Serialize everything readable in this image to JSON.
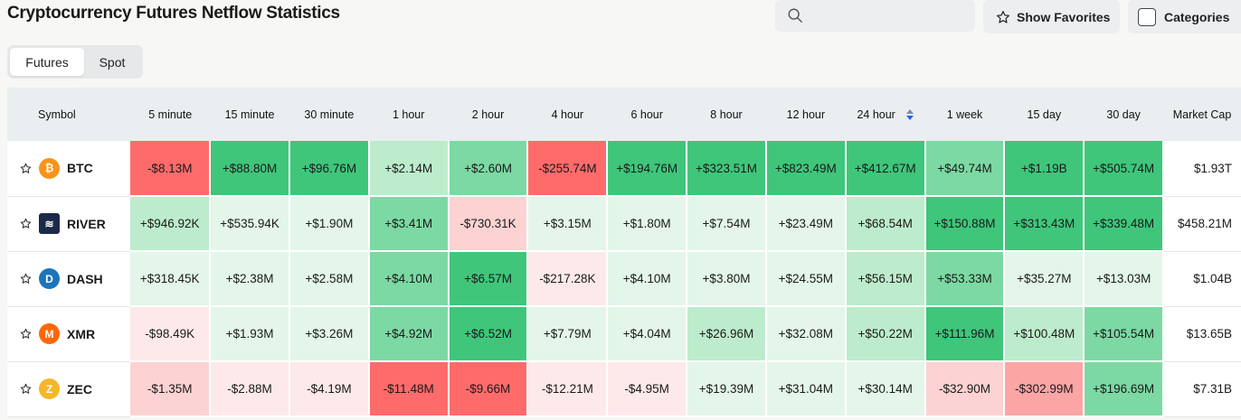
{
  "title": "Cryptocurrency Futures Netflow Statistics",
  "search": {
    "placeholder": "",
    "icon": "search-icon"
  },
  "buttons": {
    "show_favorites": "Show Favorites",
    "categories": "Categories"
  },
  "tabs": [
    {
      "label": "Futures",
      "active": true
    },
    {
      "label": "Spot",
      "active": false
    }
  ],
  "columns": [
    "Symbol",
    "5 minute",
    "15 minute",
    "30 minute",
    "1 hour",
    "2 hour",
    "4 hour",
    "6 hour",
    "8 hour",
    "12 hour",
    "24 hour",
    "1 week",
    "15 day",
    "30 day",
    "Market Cap"
  ],
  "sorted_column": "24 hour",
  "colors": {
    "strong_green": "#3fc67b",
    "mid_green": "#7cd9a3",
    "light_green": "#bdeccc",
    "faint_green": "#e3f6e9",
    "strong_red": "#ff6b6b",
    "mid_red": "#fba5a5",
    "light_red": "#fcd2d2",
    "faint_red": "#fde9e9"
  },
  "rows": [
    {
      "symbol": "BTC",
      "icon": "bitcoin-icon",
      "icon_color": "#f7931a",
      "icon_glyph": "₿",
      "market_cap": "$1.93T",
      "cells": [
        {
          "v": "-$8.13M",
          "c": "strong_red"
        },
        {
          "v": "+$88.80M",
          "c": "strong_green"
        },
        {
          "v": "+$96.76M",
          "c": "strong_green"
        },
        {
          "v": "+$2.14M",
          "c": "light_green"
        },
        {
          "v": "+$2.60M",
          "c": "mid_green"
        },
        {
          "v": "-$255.74M",
          "c": "strong_red"
        },
        {
          "v": "+$194.76M",
          "c": "strong_green"
        },
        {
          "v": "+$323.51M",
          "c": "strong_green"
        },
        {
          "v": "+$823.49M",
          "c": "strong_green"
        },
        {
          "v": "+$412.67M",
          "c": "strong_green"
        },
        {
          "v": "+$49.74M",
          "c": "mid_green"
        },
        {
          "v": "+$1.19B",
          "c": "strong_green"
        },
        {
          "v": "+$505.74M",
          "c": "strong_green"
        }
      ]
    },
    {
      "symbol": "RIVER",
      "icon": "river-icon",
      "icon_color": "#1b2a4a",
      "icon_glyph": "≋",
      "market_cap": "$458.21M",
      "cells": [
        {
          "v": "+$946.92K",
          "c": "light_green"
        },
        {
          "v": "+$535.94K",
          "c": "faint_green"
        },
        {
          "v": "+$1.90M",
          "c": "faint_green"
        },
        {
          "v": "+$3.41M",
          "c": "mid_green"
        },
        {
          "v": "-$730.31K",
          "c": "light_red"
        },
        {
          "v": "+$3.15M",
          "c": "faint_green"
        },
        {
          "v": "+$1.80M",
          "c": "faint_green"
        },
        {
          "v": "+$7.54M",
          "c": "faint_green"
        },
        {
          "v": "+$23.49M",
          "c": "faint_green"
        },
        {
          "v": "+$68.54M",
          "c": "light_green"
        },
        {
          "v": "+$150.88M",
          "c": "strong_green"
        },
        {
          "v": "+$313.43M",
          "c": "strong_green"
        },
        {
          "v": "+$339.48M",
          "c": "strong_green"
        }
      ]
    },
    {
      "symbol": "DASH",
      "icon": "dash-icon",
      "icon_color": "#1c75bc",
      "icon_glyph": "D",
      "market_cap": "$1.04B",
      "cells": [
        {
          "v": "+$318.45K",
          "c": "faint_green"
        },
        {
          "v": "+$2.38M",
          "c": "faint_green"
        },
        {
          "v": "+$2.58M",
          "c": "faint_green"
        },
        {
          "v": "+$4.10M",
          "c": "mid_green"
        },
        {
          "v": "+$6.57M",
          "c": "strong_green"
        },
        {
          "v": "-$217.28K",
          "c": "faint_red"
        },
        {
          "v": "+$4.10M",
          "c": "faint_green"
        },
        {
          "v": "+$3.80M",
          "c": "faint_green"
        },
        {
          "v": "+$24.55M",
          "c": "faint_green"
        },
        {
          "v": "+$56.15M",
          "c": "light_green"
        },
        {
          "v": "+$53.33M",
          "c": "mid_green"
        },
        {
          "v": "+$35.27M",
          "c": "faint_green"
        },
        {
          "v": "+$13.03M",
          "c": "faint_green"
        }
      ]
    },
    {
      "symbol": "XMR",
      "icon": "monero-icon",
      "icon_color": "#ff6600",
      "icon_glyph": "M",
      "market_cap": "$13.65B",
      "cells": [
        {
          "v": "-$98.49K",
          "c": "faint_red"
        },
        {
          "v": "+$1.93M",
          "c": "faint_green"
        },
        {
          "v": "+$3.26M",
          "c": "faint_green"
        },
        {
          "v": "+$4.92M",
          "c": "mid_green"
        },
        {
          "v": "+$6.52M",
          "c": "strong_green"
        },
        {
          "v": "+$7.79M",
          "c": "faint_green"
        },
        {
          "v": "+$4.04M",
          "c": "faint_green"
        },
        {
          "v": "+$26.96M",
          "c": "light_green"
        },
        {
          "v": "+$32.08M",
          "c": "faint_green"
        },
        {
          "v": "+$50.22M",
          "c": "light_green"
        },
        {
          "v": "+$111.96M",
          "c": "strong_green"
        },
        {
          "v": "+$100.48M",
          "c": "light_green"
        },
        {
          "v": "+$105.54M",
          "c": "mid_green"
        }
      ]
    },
    {
      "symbol": "ZEC",
      "icon": "zcash-icon",
      "icon_color": "#f4b728",
      "icon_glyph": "Z",
      "market_cap": "$7.31B",
      "cells": [
        {
          "v": "-$1.35M",
          "c": "light_red"
        },
        {
          "v": "-$2.88M",
          "c": "faint_red"
        },
        {
          "v": "-$4.19M",
          "c": "faint_red"
        },
        {
          "v": "-$11.48M",
          "c": "strong_red"
        },
        {
          "v": "-$9.66M",
          "c": "strong_red"
        },
        {
          "v": "-$12.21M",
          "c": "faint_red"
        },
        {
          "v": "-$4.95M",
          "c": "faint_red"
        },
        {
          "v": "+$19.39M",
          "c": "faint_green"
        },
        {
          "v": "+$31.04M",
          "c": "faint_green"
        },
        {
          "v": "+$30.14M",
          "c": "faint_green"
        },
        {
          "v": "-$32.90M",
          "c": "light_red"
        },
        {
          "v": "-$302.99M",
          "c": "mid_red"
        },
        {
          "v": "+$196.69M",
          "c": "mid_green"
        }
      ]
    }
  ]
}
